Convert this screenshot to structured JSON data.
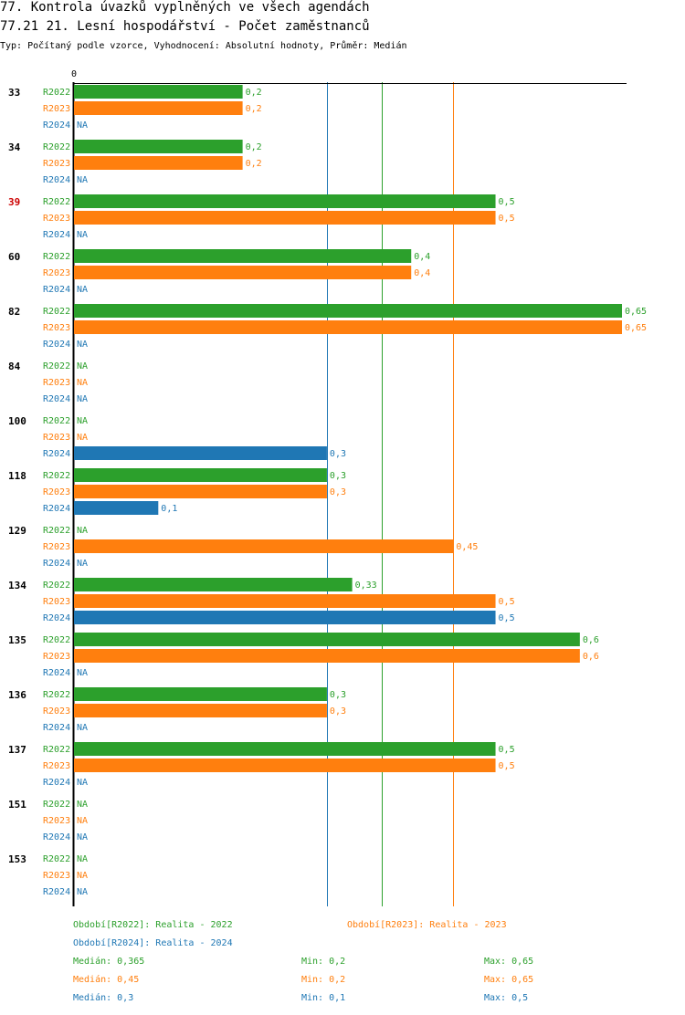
{
  "header": {
    "title_line1": "77. Kontrola úvazků vyplněných ve všech agendách",
    "title_line2": "77.21 21. Lesní hospodářství - Počet zaměstnanců",
    "subtitle": "Typ: Počítaný podle vzorce, Vyhodnocení: Absolutní hodnoty, Průměr: Medián"
  },
  "colors": {
    "R2022": "#2ca02c",
    "R2023": "#ff7f0e",
    "R2024": "#1f77b4",
    "highlight": "#cc0000"
  },
  "chart_data": {
    "type": "bar",
    "orientation": "horizontal",
    "xlim": [
      0,
      0.65
    ],
    "x_zero_label": "0",
    "na_label": "NA",
    "series_names": [
      "R2022",
      "R2023",
      "R2024"
    ],
    "categories": [
      {
        "label": "33",
        "highlight": false,
        "values": [
          0.2,
          0.2,
          null
        ]
      },
      {
        "label": "34",
        "highlight": false,
        "values": [
          0.2,
          0.2,
          null
        ]
      },
      {
        "label": "39",
        "highlight": true,
        "values": [
          0.5,
          0.5,
          null
        ]
      },
      {
        "label": "60",
        "highlight": false,
        "values": [
          0.4,
          0.4,
          null
        ]
      },
      {
        "label": "82",
        "highlight": false,
        "values": [
          0.65,
          0.65,
          null
        ]
      },
      {
        "label": "84",
        "highlight": false,
        "values": [
          null,
          null,
          null
        ]
      },
      {
        "label": "100",
        "highlight": false,
        "values": [
          null,
          null,
          0.3
        ]
      },
      {
        "label": "118",
        "highlight": false,
        "values": [
          0.3,
          0.3,
          0.1
        ]
      },
      {
        "label": "129",
        "highlight": false,
        "values": [
          null,
          0.45,
          null
        ]
      },
      {
        "label": "134",
        "highlight": false,
        "values": [
          0.33,
          0.5,
          0.5
        ]
      },
      {
        "label": "135",
        "highlight": false,
        "values": [
          0.6,
          0.6,
          null
        ]
      },
      {
        "label": "136",
        "highlight": false,
        "values": [
          0.3,
          0.3,
          null
        ]
      },
      {
        "label": "137",
        "highlight": false,
        "values": [
          0.5,
          0.5,
          null
        ]
      },
      {
        "label": "151",
        "highlight": false,
        "values": [
          null,
          null,
          null
        ]
      },
      {
        "label": "153",
        "highlight": false,
        "values": [
          null,
          null,
          null
        ]
      }
    ],
    "value_labels": [
      [
        "0,2",
        "0,2",
        "NA"
      ],
      [
        "0,2",
        "0,2",
        "NA"
      ],
      [
        "0,5",
        "0,5",
        "NA"
      ],
      [
        "0,4",
        "0,4",
        "NA"
      ],
      [
        "0,65",
        "0,65",
        "NA"
      ],
      [
        "NA",
        "NA",
        "NA"
      ],
      [
        "NA",
        "NA",
        "0,3"
      ],
      [
        "0,3",
        "0,3",
        "0,1"
      ],
      [
        "NA",
        "0,45",
        "NA"
      ],
      [
        "0,33",
        "0,5",
        "0,5"
      ],
      [
        "0,6",
        "0,6",
        "NA"
      ],
      [
        "0,3",
        "0,3",
        "NA"
      ],
      [
        "0,5",
        "0,5",
        "NA"
      ],
      [
        "NA",
        "NA",
        "NA"
      ],
      [
        "NA",
        "NA",
        "NA"
      ]
    ],
    "reference_lines": [
      {
        "series": "R2024",
        "value": 0.3
      },
      {
        "series": "R2022",
        "value": 0.365
      },
      {
        "series": "R2023",
        "value": 0.45
      }
    ]
  },
  "legend": {
    "r2022": "Období[R2022]: Realita - 2022",
    "r2023": "Období[R2023]: Realita - 2023",
    "r2024": "Období[R2024]: Realita - 2024"
  },
  "stats": {
    "r2022": {
      "median": "Medián: 0,365",
      "min": "Min: 0,2",
      "max": "Max: 0,65"
    },
    "r2023": {
      "median": "Medián: 0,45",
      "min": "Min: 0,2",
      "max": "Max: 0,65"
    },
    "r2024": {
      "median": "Medián: 0,3",
      "min": "Min: 0,1",
      "max": "Max: 0,5"
    }
  }
}
